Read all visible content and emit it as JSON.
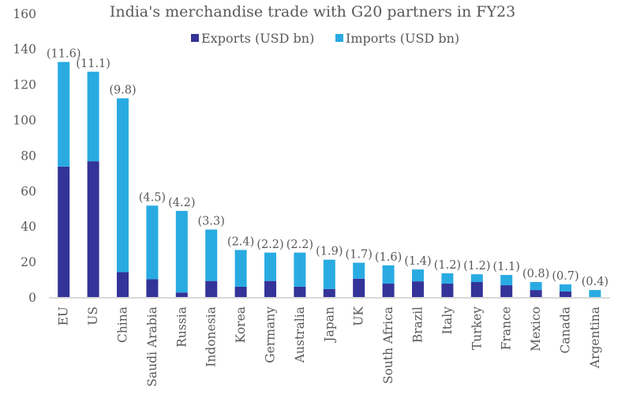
{
  "chart_data": {
    "type": "bar",
    "stacked": true,
    "title": "India's merchandise trade with G20 partners in FY23",
    "xlabel": "",
    "ylabel": "",
    "ylim": [
      0,
      160
    ],
    "yticks": [
      0,
      20,
      40,
      60,
      80,
      100,
      120,
      140,
      160
    ],
    "grid": false,
    "legend_position": "top-center",
    "categories": [
      "EU",
      "US",
      "China",
      "Saudi Arabia",
      "Russia",
      "Indonesia",
      "Korea",
      "Germany",
      "Australia",
      "Japan",
      "UK",
      "South Africa",
      "Brazil",
      "Italy",
      "Turkey",
      "France",
      "Mexico",
      "Canada",
      "Argentina"
    ],
    "series": [
      {
        "name": "Exports (USD bn)",
        "color": "#333399",
        "values": [
          74.0,
          77.0,
          14.5,
          10.5,
          3.0,
          9.5,
          6.3,
          9.5,
          6.3,
          5.0,
          10.8,
          8.0,
          9.3,
          8.0,
          8.9,
          7.1,
          4.4,
          3.6,
          0.4
        ]
      },
      {
        "name": "Imports (USD bn)",
        "color": "#29ABE2",
        "values": [
          59.0,
          50.5,
          98.0,
          41.5,
          46.0,
          29.0,
          20.7,
          16.0,
          19.2,
          16.5,
          9.0,
          10.3,
          6.7,
          5.8,
          4.4,
          5.8,
          4.5,
          4.0,
          4.0
        ]
      }
    ],
    "data_labels": [
      "(11.6)",
      "(11.1)",
      "(9.8)",
      "(4.5)",
      "(4.2)",
      "(3.3)",
      "(2.4)",
      "(2.2)",
      "(2.2)",
      "(1.9)",
      "(1.7)",
      "(1.6)",
      "(1.4)",
      "(1.2)",
      "(1.2)",
      "(1.1)",
      "(0.8)",
      "(0.7)",
      "(0.4)"
    ],
    "axis_color": "#D9D9D9"
  }
}
